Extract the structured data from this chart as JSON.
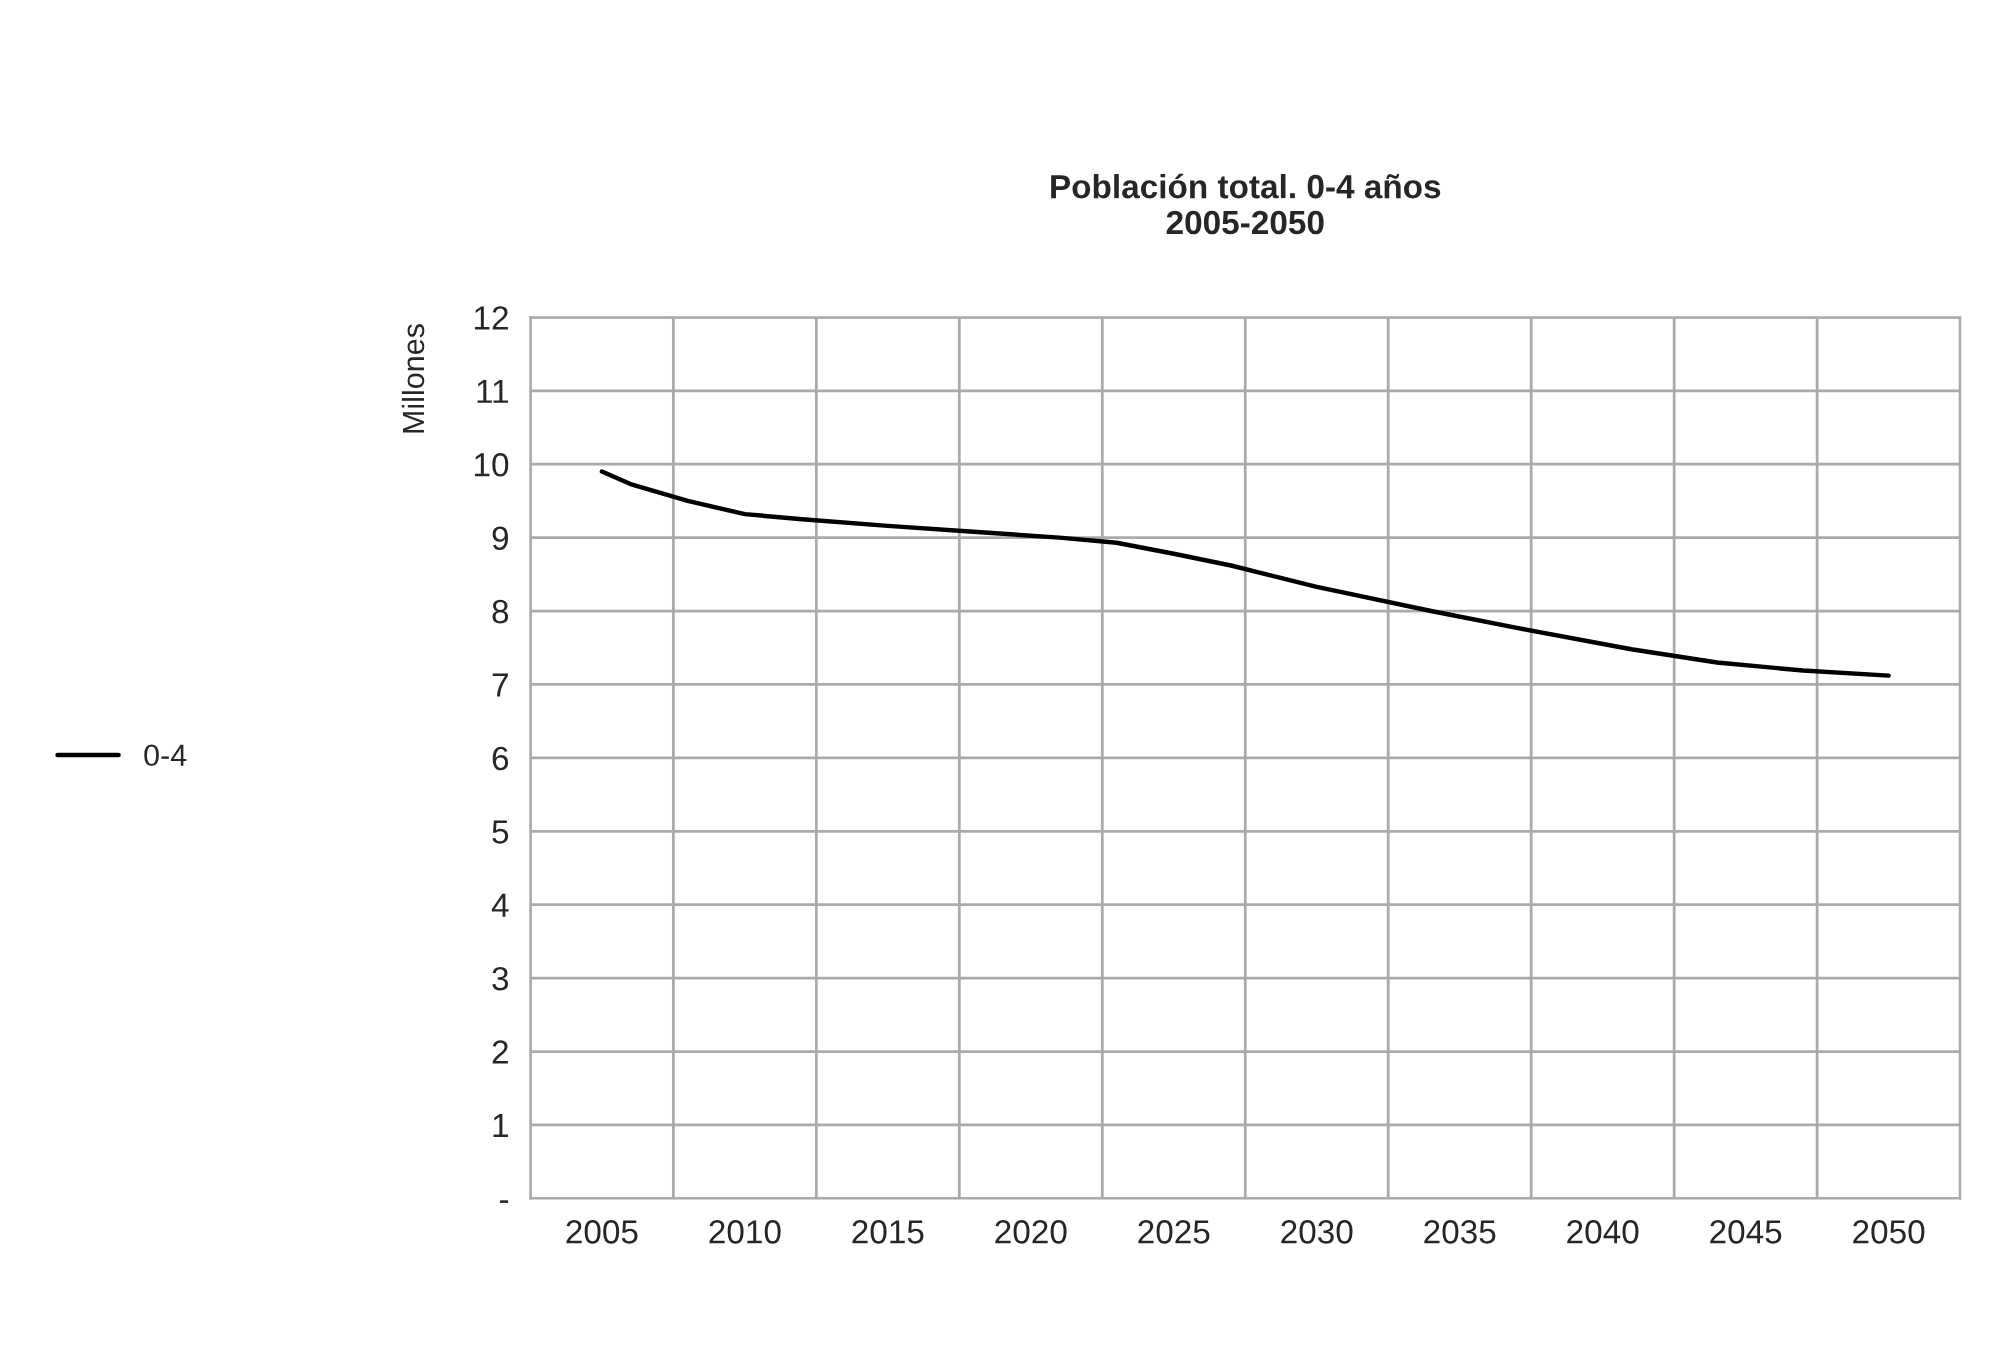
{
  "chart_data": {
    "type": "line",
    "title": "Población total. 0-4 años\n2005-2050",
    "ylabel": "Millones",
    "x": [
      2005,
      2006,
      2008,
      2010,
      2012,
      2015,
      2018,
      2021,
      2023,
      2025,
      2027,
      2030,
      2034,
      2037,
      2041,
      2044,
      2047,
      2050
    ],
    "series": [
      {
        "name": "0-4",
        "color": "#000000",
        "values": [
          9.9,
          9.73,
          9.5,
          9.32,
          9.25,
          9.16,
          9.08,
          9.0,
          8.93,
          8.78,
          8.62,
          8.33,
          8.0,
          7.77,
          7.48,
          7.3,
          7.19,
          7.12
        ]
      }
    ],
    "xlim": [
      2002.5,
      2052.5
    ],
    "xticks": [
      {
        "value": 2002.5,
        "label": null
      },
      2005,
      {
        "value": 2007.5,
        "label": null
      },
      2010,
      {
        "value": 2012.5,
        "label": null
      },
      2015,
      {
        "value": 2017.5,
        "label": null
      },
      2020,
      {
        "value": 2022.5,
        "label": null
      },
      2025,
      {
        "value": 2027.5,
        "label": null
      },
      2030,
      {
        "value": 2032.5,
        "label": null
      },
      2035,
      {
        "value": 2037.5,
        "label": null
      },
      2040,
      {
        "value": 2042.5,
        "label": null
      },
      2045,
      {
        "value": 2047.5,
        "label": null
      },
      2050,
      {
        "value": 2052.5,
        "label": null
      }
    ],
    "ylim": [
      0,
      12
    ],
    "yticks": [
      {
        "value": 0,
        "label": "-"
      },
      1,
      2,
      3,
      4,
      5,
      6,
      7,
      8,
      9,
      10,
      11,
      12
    ],
    "grid": true,
    "legend": "left",
    "marker": "none",
    "line_style": "solid"
  }
}
